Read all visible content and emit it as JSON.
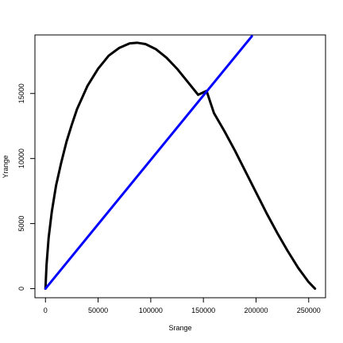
{
  "chart_data": {
    "type": "line",
    "title": "",
    "xlabel": "Srange",
    "ylabel": "Yrange",
    "xlim": [
      -10000,
      266000
    ],
    "ylim": [
      -700,
      19500
    ],
    "x_ticks": [
      0,
      50000,
      100000,
      150000,
      200000,
      250000
    ],
    "y_ticks": [
      0,
      5000,
      10000,
      15000
    ],
    "grid": false,
    "legend": "none",
    "series": [
      {
        "color": "#000000",
        "x": [
          0,
          1000,
          3000,
          6000,
          10000,
          15000,
          20000,
          25000,
          30000,
          40000,
          50000,
          60000,
          70000,
          80000,
          87000,
          95000,
          105000,
          115000,
          125000,
          135000,
          145000,
          153000,
          160000,
          170000,
          180000,
          190000,
          200000,
          210000,
          220000,
          230000,
          240000,
          250000,
          256000
        ],
        "y": [
          0,
          1800,
          3900,
          5900,
          7900,
          9700,
          11300,
          12600,
          13800,
          15600,
          16900,
          17900,
          18500,
          18850,
          18900,
          18800,
          18400,
          17750,
          16900,
          15900,
          14900,
          15200,
          13500,
          12100,
          10600,
          9000,
          7400,
          5800,
          4300,
          2900,
          1600,
          500,
          0
        ]
      },
      {
        "color": "#0000ff",
        "x": [
          0,
          196000
        ],
        "y": [
          0,
          19400
        ]
      }
    ]
  }
}
